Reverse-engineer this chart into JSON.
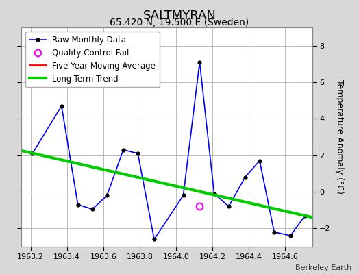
{
  "title": "SALTMYRAN",
  "subtitle": "65.420 N, 19.500 E (Sweden)",
  "ylabel": "Temperature Anomaly (°C)",
  "credit": "Berkeley Earth",
  "xlim": [
    1963.15,
    1964.75
  ],
  "ylim": [
    -3.0,
    9.0
  ],
  "yticks": [
    -2,
    0,
    2,
    4,
    6,
    8
  ],
  "xticks": [
    1963.2,
    1963.4,
    1963.6,
    1963.8,
    1964.0,
    1964.2,
    1964.4,
    1964.6
  ],
  "raw_x": [
    1963.21,
    1963.37,
    1963.46,
    1963.54,
    1963.62,
    1963.71,
    1963.79,
    1963.88,
    1964.04,
    1964.13,
    1964.21,
    1964.29,
    1964.38,
    1964.46,
    1964.54,
    1964.63,
    1964.71
  ],
  "raw_y": [
    2.1,
    4.7,
    -0.7,
    -0.95,
    -0.2,
    2.3,
    2.1,
    -2.6,
    -0.2,
    7.1,
    -0.1,
    -0.8,
    0.8,
    1.7,
    -2.2,
    -2.4,
    -1.3
  ],
  "qc_fail_x": [
    1964.13
  ],
  "qc_fail_y": [
    -0.8
  ],
  "trend_x": [
    1963.15,
    1964.75
  ],
  "trend_y": [
    2.25,
    -1.4
  ],
  "raw_color": "#0000ff",
  "raw_marker_color": "#000000",
  "qc_color": "#ff00ff",
  "trend_color": "#00cc00",
  "moving_avg_color": "#ff0000",
  "fig_bg_color": "#d8d8d8",
  "plot_bg_color": "#ffffff",
  "grid_color": "#bbbbbb",
  "title_fontsize": 13,
  "subtitle_fontsize": 10,
  "legend_fontsize": 8.5,
  "tick_fontsize": 8,
  "credit_fontsize": 8
}
